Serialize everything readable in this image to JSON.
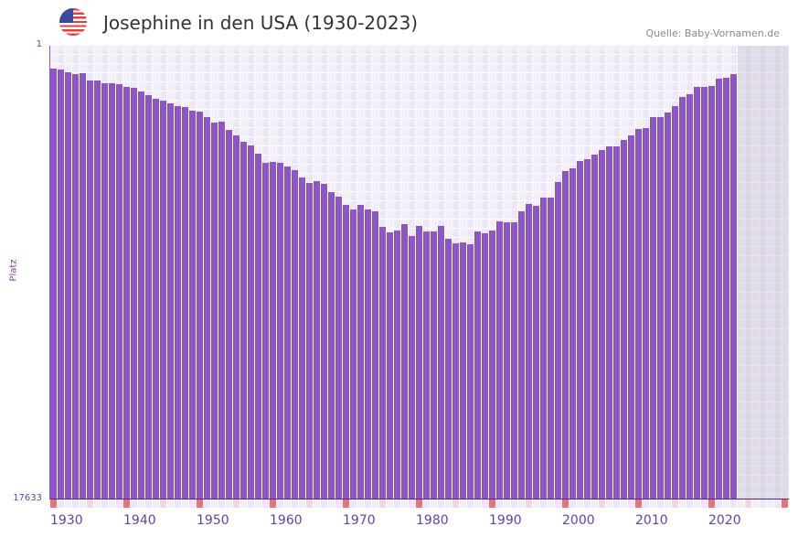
{
  "header": {
    "title": "Josephine in den USA (1930-2023)",
    "source": "Quelle: Baby-Vornamen.de",
    "flag_icon": "us-flag-icon"
  },
  "colors": {
    "bar": "#8e55c6",
    "decade_marker": "#e8737a",
    "half_decade_marker": "#f5d5dc"
  },
  "chart_data": {
    "type": "bar",
    "title": "Josephine in den USA (1930-2023)",
    "xlabel": "",
    "ylabel": "Platz",
    "ytick_labels": [
      "1",
      "17633"
    ],
    "ylim": [
      17633,
      1
    ],
    "xlim": [
      1930,
      2030
    ],
    "xtick_labels": [
      "1930",
      "1940",
      "1950",
      "1960",
      "1970",
      "1980",
      "1990",
      "2000",
      "2010",
      "2020"
    ],
    "x_start": 1930,
    "values": [
      891,
      927,
      1033,
      1105,
      1070,
      1355,
      1355,
      1461,
      1461,
      1497,
      1604,
      1640,
      1782,
      1924,
      2067,
      2138,
      2245,
      2352,
      2388,
      2530,
      2566,
      2779,
      2993,
      2957,
      3278,
      3492,
      3741,
      3884,
      4204,
      4560,
      4525,
      4560,
      4703,
      4845,
      5130,
      5344,
      5273,
      5380,
      5700,
      5878,
      6199,
      6377,
      6199,
      6377,
      6448,
      7054,
      7267,
      7196,
      6947,
      7410,
      7018,
      7232,
      7232,
      7018,
      7517,
      7695,
      7659,
      7731,
      7232,
      7303,
      7196,
      6840,
      6876,
      6876,
      6448,
      6163,
      6234,
      5914,
      5914,
      5308,
      4881,
      4774,
      4489,
      4418,
      4240,
      4062,
      3919,
      3919,
      3670,
      3492,
      3242,
      3207,
      2779,
      2779,
      2601,
      2352,
      1996,
      1889,
      1604,
      1604,
      1568,
      1283,
      1248,
      1105
    ],
    "grid": true
  }
}
